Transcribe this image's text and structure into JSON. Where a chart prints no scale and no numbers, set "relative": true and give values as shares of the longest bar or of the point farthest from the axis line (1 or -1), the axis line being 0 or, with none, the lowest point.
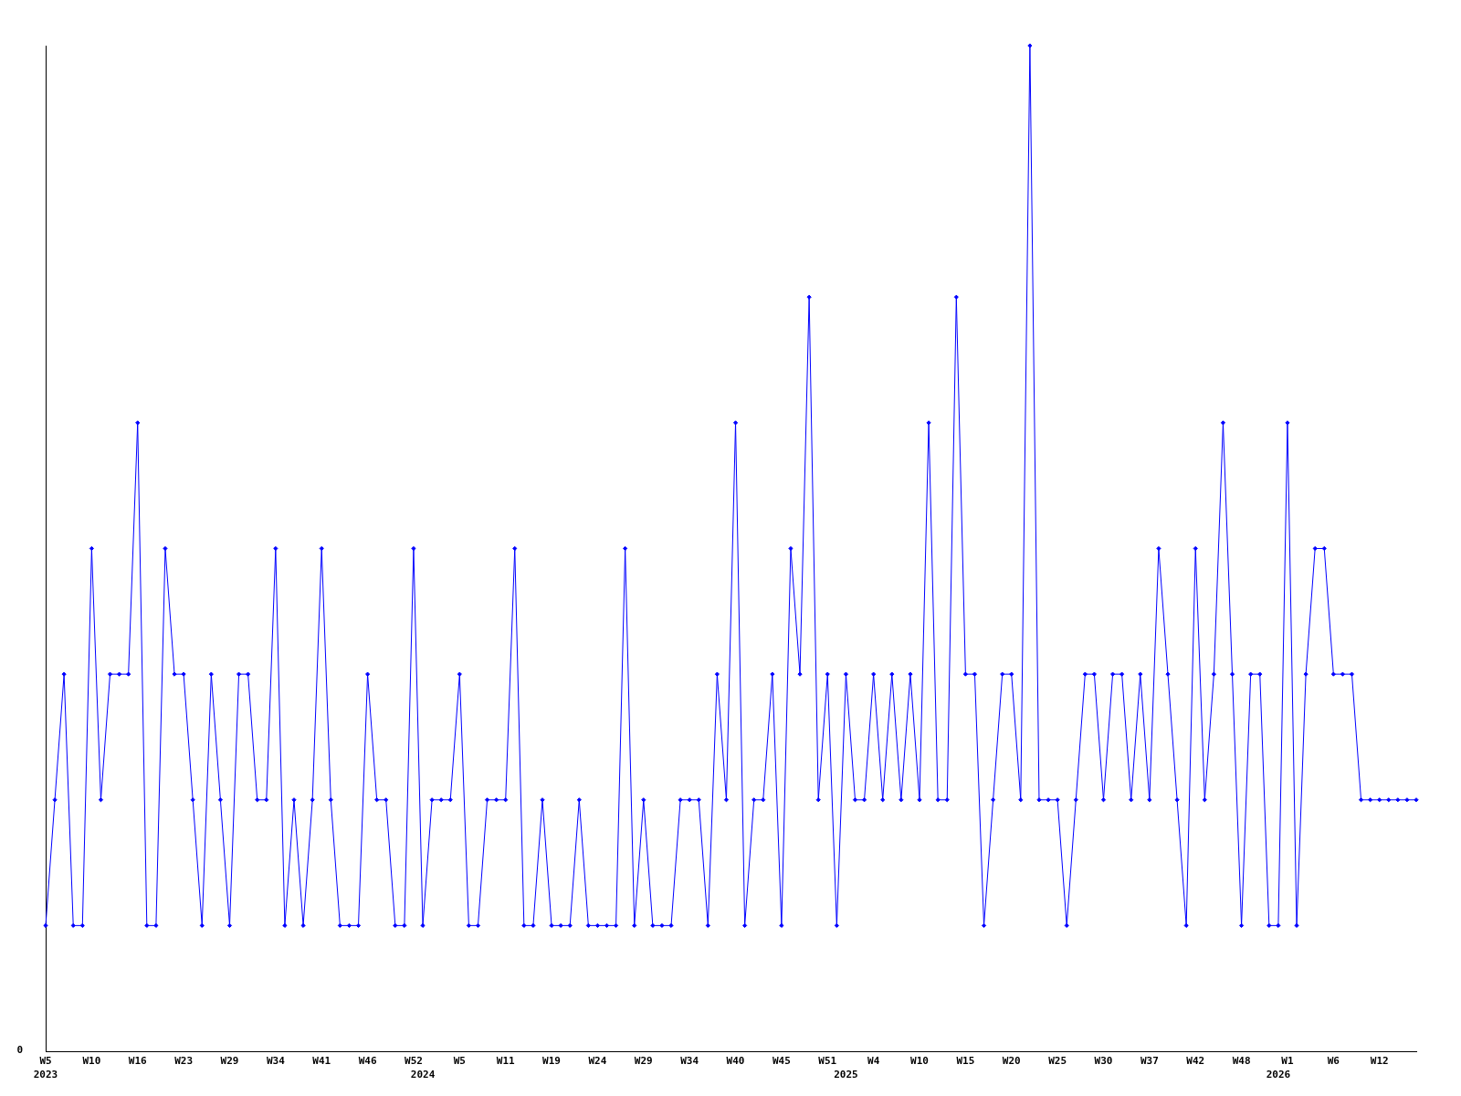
{
  "chart_data": {
    "type": "line",
    "relative": true,
    "marker": "diamond",
    "line_style": "solid",
    "grid": false,
    "legend": false,
    "annotations": [
      "0"
    ],
    "categories": [
      "W5\n2023",
      null,
      null,
      null,
      null,
      "W10",
      null,
      null,
      null,
      null,
      "W16",
      null,
      null,
      null,
      null,
      "W23",
      null,
      null,
      null,
      null,
      "W29",
      null,
      null,
      null,
      null,
      "W34",
      null,
      null,
      null,
      null,
      "W41",
      null,
      null,
      null,
      null,
      "W46",
      null,
      null,
      null,
      null,
      "W52",
      "\n2024",
      null,
      null,
      null,
      "W5",
      null,
      null,
      null,
      null,
      "W11",
      null,
      null,
      null,
      null,
      "W19",
      null,
      null,
      null,
      null,
      "W24",
      null,
      null,
      null,
      null,
      "W29",
      null,
      null,
      null,
      null,
      "W34",
      null,
      null,
      null,
      null,
      "W40",
      null,
      null,
      null,
      null,
      "W45",
      null,
      null,
      null,
      null,
      "W51",
      null,
      "\n2025",
      null,
      null,
      "W4",
      null,
      null,
      null,
      null,
      "W10",
      null,
      null,
      null,
      null,
      "W15",
      null,
      null,
      null,
      null,
      "W20",
      null,
      null,
      null,
      null,
      "W25",
      null,
      null,
      null,
      null,
      "W30",
      null,
      null,
      null,
      null,
      "W37",
      null,
      null,
      null,
      null,
      "W42",
      null,
      null,
      null,
      null,
      "W48",
      null,
      null,
      null,
      "\n2026",
      "W1",
      null,
      null,
      null,
      null,
      "W6",
      null,
      null,
      null,
      null,
      "W12",
      null,
      null,
      null,
      null
    ],
    "series": [
      {
        "color": "#0000ff",
        "values": [
          0.125,
          0.25,
          0.375,
          0.125,
          0.125,
          0.5,
          0.25,
          0.375,
          0.375,
          0.375,
          0.625,
          0.125,
          0.125,
          0.5,
          0.375,
          0.375,
          0.25,
          0.125,
          0.375,
          0.25,
          0.125,
          0.375,
          0.375,
          0.25,
          0.25,
          0.5,
          0.125,
          0.25,
          0.125,
          0.25,
          0.5,
          0.25,
          0.125,
          0.125,
          0.125,
          0.375,
          0.25,
          0.25,
          0.125,
          0.125,
          0.5,
          0.125,
          0.25,
          0.25,
          0.25,
          0.375,
          0.125,
          0.125,
          0.25,
          0.25,
          0.25,
          0.5,
          0.125,
          0.125,
          0.25,
          0.125,
          0.125,
          0.125,
          0.25,
          0.125,
          0.125,
          0.125,
          0.125,
          0.5,
          0.125,
          0.25,
          0.125,
          0.125,
          0.125,
          0.25,
          0.25,
          0.25,
          0.125,
          0.375,
          0.25,
          0.625,
          0.125,
          0.25,
          0.25,
          0.375,
          0.125,
          0.5,
          0.375,
          0.75,
          0.25,
          0.375,
          0.125,
          0.375,
          0.25,
          0.25,
          0.375,
          0.25,
          0.375,
          0.25,
          0.375,
          0.25,
          0.625,
          0.25,
          0.25,
          0.75,
          0.375,
          0.375,
          0.125,
          0.25,
          0.375,
          0.375,
          0.25,
          1,
          0.25,
          0.25,
          0.25,
          0.125,
          0.25,
          0.375,
          0.375,
          0.25,
          0.375,
          0.375,
          0.25,
          0.375,
          0.25,
          0.5,
          0.375,
          0.25,
          0.125,
          0.5,
          0.25,
          0.375,
          0.625,
          0.375,
          0.125,
          0.375,
          0.375,
          0.125,
          0.125,
          0.625,
          0.125,
          0.375,
          0.5,
          0.5,
          0.375,
          0.375,
          0.375,
          0.25,
          0.25,
          0.25,
          0.25,
          0.25,
          0.25,
          0.25
        ]
      }
    ]
  }
}
